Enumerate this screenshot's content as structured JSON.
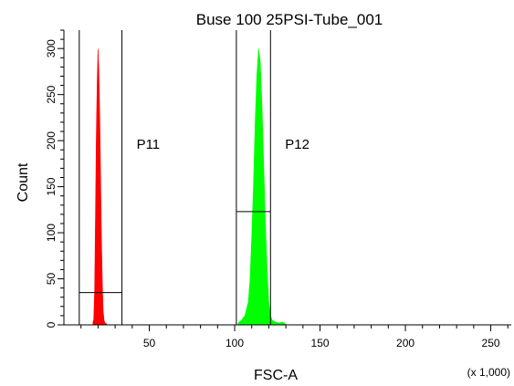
{
  "chart_data": {
    "type": "histogram",
    "title": "Buse 100 25PSI-Tube_001",
    "xlabel": "FSC-A",
    "ylabel": "Count",
    "x_scale_note": "(x 1,000)",
    "xlim": [
      0,
      262
    ],
    "ylim": [
      0,
      320
    ],
    "x_major_ticks": [
      50,
      100,
      150,
      200,
      250
    ],
    "x_minor_step": 10,
    "y_major_ticks": [
      0,
      50,
      100,
      150,
      200,
      250,
      300
    ],
    "y_minor_step": 10,
    "grid": false,
    "series": [
      {
        "name": "P11",
        "color": "#ff0000",
        "bins": [
          [
            17,
            2
          ],
          [
            17.5,
            6
          ],
          [
            18,
            40
          ],
          [
            18.5,
            120
          ],
          [
            19,
            205
          ],
          [
            19.5,
            265
          ],
          [
            20,
            300
          ],
          [
            20.5,
            275
          ],
          [
            21,
            225
          ],
          [
            21.5,
            160
          ],
          [
            22,
            95
          ],
          [
            22.5,
            45
          ],
          [
            23,
            15
          ],
          [
            23.5,
            5
          ],
          [
            24,
            2
          ],
          [
            25,
            1
          ]
        ]
      },
      {
        "name": "P12",
        "color": "#00ff00",
        "bins": [
          [
            102,
            2
          ],
          [
            104,
            5
          ],
          [
            106,
            10
          ],
          [
            108,
            25
          ],
          [
            109,
            50
          ],
          [
            110,
            95
          ],
          [
            111,
            150
          ],
          [
            112,
            220
          ],
          [
            113,
            270
          ],
          [
            114,
            300
          ],
          [
            115,
            285
          ],
          [
            116,
            240
          ],
          [
            117,
            175
          ],
          [
            118,
            110
          ],
          [
            119,
            60
          ],
          [
            120,
            25
          ],
          [
            121,
            10
          ],
          [
            122,
            5
          ],
          [
            124,
            3
          ],
          [
            126,
            2
          ],
          [
            128,
            3
          ],
          [
            130,
            1
          ]
        ]
      }
    ],
    "gates": [
      {
        "name": "P11",
        "x_range": [
          9,
          34
        ],
        "level": 35
      },
      {
        "name": "P12",
        "x_range": [
          101,
          121
        ],
        "level": 123
      }
    ]
  }
}
